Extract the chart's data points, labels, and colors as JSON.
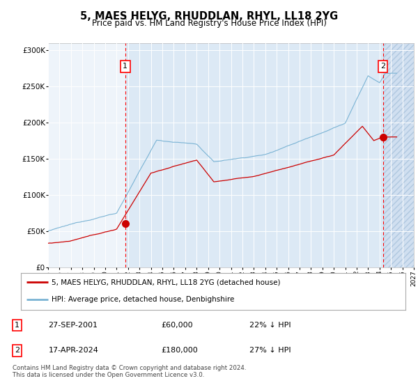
{
  "title": "5, MAES HELYG, RHUDDLAN, RHYL, LL18 2YG",
  "subtitle": "Price paid vs. HM Land Registry's House Price Index (HPI)",
  "legend_line1": "5, MAES HELYG, RHUDDLAN, RHYL, LL18 2YG (detached house)",
  "legend_line2": "HPI: Average price, detached house, Denbighshire",
  "footer": "Contains HM Land Registry data © Crown copyright and database right 2024.\nThis data is licensed under the Open Government Licence v3.0.",
  "sale1_date": "27-SEP-2001",
  "sale1_price": "£60,000",
  "sale1_hpi": "22% ↓ HPI",
  "sale2_date": "17-APR-2024",
  "sale2_price": "£180,000",
  "sale2_hpi": "27% ↓ HPI",
  "plot_bg": "#dce9f5",
  "pre_sale_bg": "#eef4fa",
  "hatch_bg": "#d0dff0",
  "hpi_color": "#7ab3d4",
  "price_color": "#cc0000",
  "ylim": [
    0,
    310000
  ],
  "yticks": [
    0,
    50000,
    100000,
    150000,
    200000,
    250000,
    300000
  ],
  "sale1_x": 2001.75,
  "sale1_y": 60000,
  "sale2_x": 2024.29,
  "sale2_y": 180000,
  "xmin": 1995,
  "xmax": 2027,
  "future_start": 2024.33,
  "xticks": [
    1995,
    1996,
    1997,
    1998,
    1999,
    2000,
    2001,
    2002,
    2003,
    2004,
    2005,
    2006,
    2007,
    2008,
    2009,
    2010,
    2011,
    2012,
    2013,
    2014,
    2015,
    2016,
    2017,
    2018,
    2019,
    2020,
    2021,
    2022,
    2023,
    2024,
    2025,
    2026,
    2027
  ]
}
